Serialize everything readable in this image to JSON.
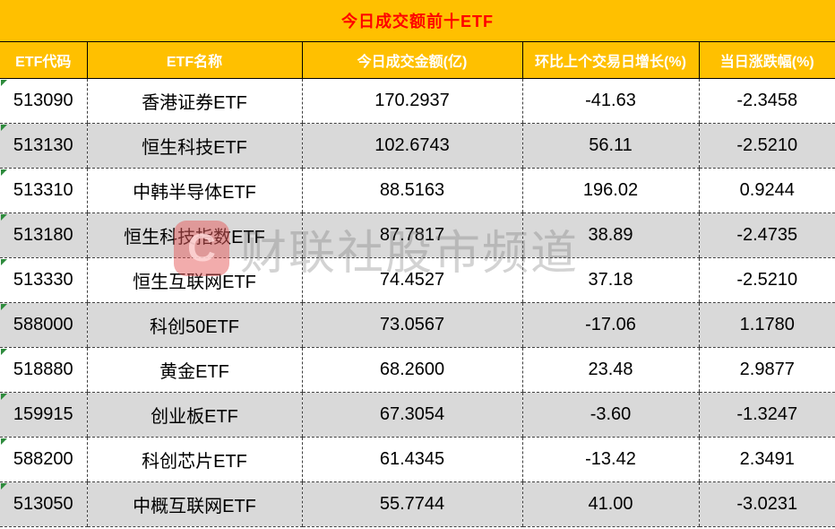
{
  "chart_data": {
    "type": "table",
    "title": "今日成交额前十ETF",
    "columns": [
      "ETF代码",
      "ETF名称",
      "今日成交金额(亿)",
      "环比上个交易日增长(%)",
      "当日涨跌幅(%)"
    ],
    "rows": [
      [
        "513090",
        "香港证券ETF",
        "170.2937",
        "-41.63",
        "-2.3458"
      ],
      [
        "513130",
        "恒生科技ETF",
        "102.6743",
        "56.11",
        "-2.5210"
      ],
      [
        "513310",
        "中韩半导体ETF",
        "88.5163",
        "196.02",
        "0.9244"
      ],
      [
        "513180",
        "恒生科技指数ETF",
        "87.7817",
        "38.89",
        "-2.4735"
      ],
      [
        "513330",
        "恒生互联网ETF",
        "74.4527",
        "37.18",
        "-2.5210"
      ],
      [
        "588000",
        "科创50ETF",
        "73.0567",
        "-17.06",
        "1.1780"
      ],
      [
        "518880",
        "黄金ETF",
        "68.2600",
        "23.48",
        "2.9877"
      ],
      [
        "159915",
        "创业板ETF",
        "67.3054",
        "-3.60",
        "-1.3247"
      ],
      [
        "588200",
        "科创芯片ETF",
        "61.4345",
        "-13.42",
        "2.3491"
      ],
      [
        "513050",
        "中概互联网ETF",
        "55.7744",
        "41.00",
        "-3.0231"
      ]
    ],
    "layout": {
      "grid": "dashed",
      "alt_row_shading": true,
      "legend_position": "none"
    }
  },
  "watermark": {
    "text": "财联社股市频道",
    "logo_letter": "C"
  },
  "colors": {
    "band_orange": "#FFC000",
    "title_red": "#FF0000",
    "header_text_white": "#FFFFFF",
    "alt_row_gray": "#D9D9D9",
    "grid_black": "#000000",
    "indicator_green": "#2E8B3D",
    "watermark_logo_red": "#E55A5A"
  }
}
